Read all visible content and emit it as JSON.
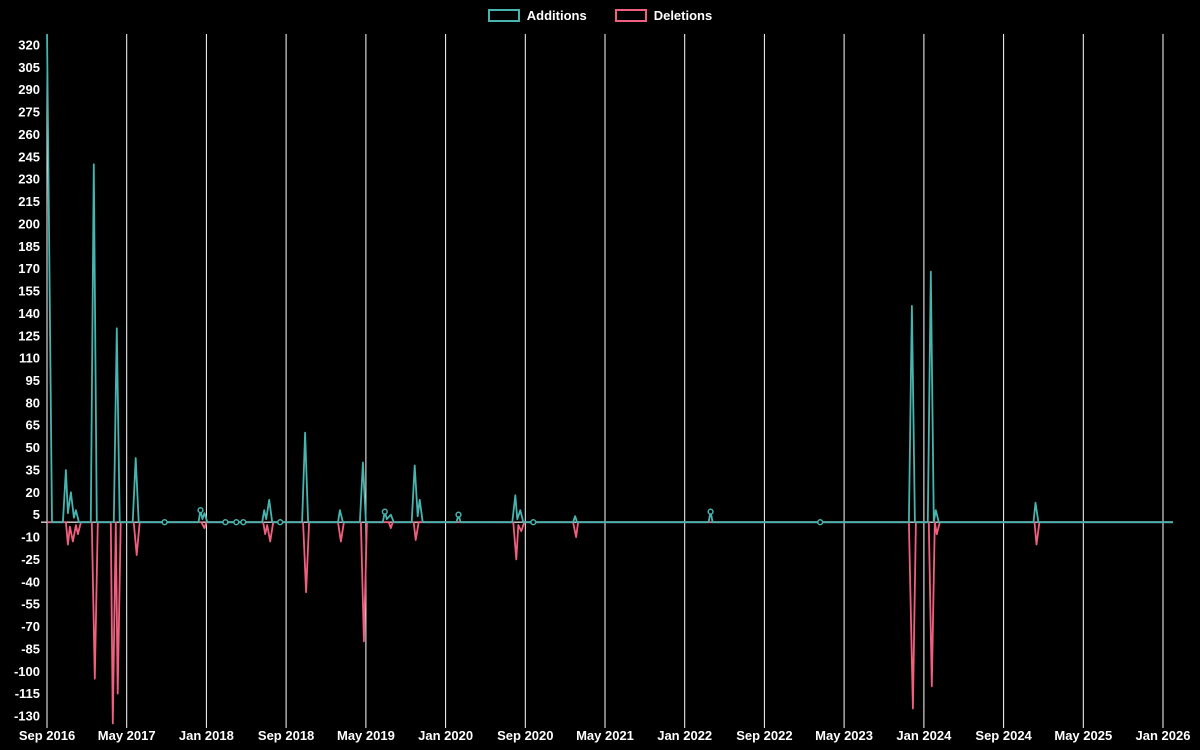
{
  "legend": {
    "position": "top-center"
  },
  "chart_data": {
    "type": "line",
    "title": "",
    "xlabel": "",
    "ylabel": "",
    "x_unit": "months since Sep 2016",
    "x_tick_interval_months": 8,
    "x_tick_labels": [
      "Sep 2016",
      "May 2017",
      "Jan 2018",
      "Sep 2018",
      "May 2019",
      "Jan 2020",
      "Sep 2020",
      "May 2021",
      "Jan 2022",
      "Sep 2022",
      "May 2023",
      "Jan 2024",
      "Sep 2024",
      "May 2025",
      "Jan 2026"
    ],
    "y_ticks": [
      320,
      305,
      290,
      275,
      260,
      245,
      230,
      215,
      200,
      185,
      170,
      155,
      140,
      125,
      110,
      95,
      80,
      65,
      50,
      35,
      20,
      5,
      -10,
      -25,
      -40,
      -55,
      -70,
      -85,
      -100,
      -115,
      -130
    ],
    "ylim": [
      -130,
      320
    ],
    "grid": "vertical-only",
    "legend_position": "top-center",
    "colors": {
      "background": "#000000",
      "grid": "#ffffff",
      "zero_line": "#d8d8d8",
      "text": "#ffffff",
      "additions": "#46b4af",
      "deletions": "#f0607e"
    },
    "series": [
      {
        "name": "Additions",
        "color": "#46b4af",
        "points": [
          [
            0,
            330
          ],
          [
            0.5,
            0
          ],
          [
            1.6,
            0
          ],
          [
            1.9,
            35
          ],
          [
            2.1,
            6
          ],
          [
            2.4,
            20
          ],
          [
            2.7,
            3
          ],
          [
            2.9,
            8
          ],
          [
            3.2,
            0
          ],
          [
            4.4,
            0
          ],
          [
            4.7,
            240
          ],
          [
            5.0,
            0
          ],
          [
            6.7,
            0
          ],
          [
            7.0,
            130
          ],
          [
            7.3,
            0
          ],
          [
            8.6,
            0
          ],
          [
            8.9,
            43
          ],
          [
            9.2,
            0
          ],
          [
            15.2,
            0
          ],
          [
            15.4,
            8
          ],
          [
            15.6,
            2
          ],
          [
            15.8,
            6
          ],
          [
            16.1,
            0
          ],
          [
            21.6,
            0
          ],
          [
            21.8,
            8
          ],
          [
            22.0,
            2
          ],
          [
            22.3,
            15
          ],
          [
            22.6,
            0
          ],
          [
            25.6,
            0
          ],
          [
            25.9,
            60
          ],
          [
            26.2,
            0
          ],
          [
            29.2,
            0
          ],
          [
            29.4,
            8
          ],
          [
            29.7,
            0
          ],
          [
            31.4,
            0
          ],
          [
            31.7,
            40
          ],
          [
            32.0,
            0
          ],
          [
            33.7,
            0
          ],
          [
            33.9,
            7
          ],
          [
            34.1,
            2
          ],
          [
            34.5,
            5
          ],
          [
            34.8,
            0
          ],
          [
            36.6,
            0
          ],
          [
            36.9,
            38
          ],
          [
            37.2,
            4
          ],
          [
            37.4,
            15
          ],
          [
            37.7,
            0
          ],
          [
            41.1,
            0
          ],
          [
            41.3,
            5
          ],
          [
            41.5,
            0
          ],
          [
            46.7,
            0
          ],
          [
            47.0,
            18
          ],
          [
            47.2,
            2
          ],
          [
            47.5,
            8
          ],
          [
            47.8,
            0
          ],
          [
            52.8,
            0
          ],
          [
            53.0,
            4
          ],
          [
            53.2,
            0
          ],
          [
            66.4,
            0
          ],
          [
            66.6,
            7
          ],
          [
            66.8,
            0
          ],
          [
            86.5,
            0
          ],
          [
            86.8,
            145
          ],
          [
            87.1,
            0
          ],
          [
            88.4,
            0
          ],
          [
            88.7,
            168
          ],
          [
            89.0,
            0
          ],
          [
            89.2,
            8
          ],
          [
            89.5,
            0
          ],
          [
            99.0,
            0
          ],
          [
            99.2,
            13
          ],
          [
            99.5,
            0
          ],
          [
            113,
            0
          ]
        ],
        "markers": [
          [
            11.8,
            0
          ],
          [
            15.4,
            8
          ],
          [
            17.9,
            0
          ],
          [
            19.0,
            0
          ],
          [
            19.7,
            0
          ],
          [
            23.4,
            0
          ],
          [
            33.9,
            7
          ],
          [
            41.3,
            5
          ],
          [
            48.8,
            0
          ],
          [
            66.6,
            7
          ],
          [
            77.6,
            0
          ]
        ]
      },
      {
        "name": "Deletions",
        "color": "#f0607e",
        "points": [
          [
            0,
            0
          ],
          [
            1.9,
            0
          ],
          [
            2.1,
            -15
          ],
          [
            2.3,
            -3
          ],
          [
            2.6,
            -13
          ],
          [
            2.9,
            -2
          ],
          [
            3.1,
            -8
          ],
          [
            3.4,
            0
          ],
          [
            4.5,
            0
          ],
          [
            4.8,
            -105
          ],
          [
            5.1,
            0
          ],
          [
            6.4,
            0
          ],
          [
            6.6,
            -135
          ],
          [
            6.9,
            0
          ],
          [
            7.1,
            -115
          ],
          [
            7.4,
            0
          ],
          [
            8.7,
            0
          ],
          [
            9.0,
            -22
          ],
          [
            9.3,
            0
          ],
          [
            15.5,
            0
          ],
          [
            15.8,
            -4
          ],
          [
            16.0,
            0
          ],
          [
            21.7,
            0
          ],
          [
            21.9,
            -8
          ],
          [
            22.1,
            -2
          ],
          [
            22.4,
            -13
          ],
          [
            22.7,
            0
          ],
          [
            25.7,
            0
          ],
          [
            26.0,
            -47
          ],
          [
            26.3,
            0
          ],
          [
            29.2,
            0
          ],
          [
            29.5,
            -13
          ],
          [
            29.8,
            0
          ],
          [
            31.5,
            0
          ],
          [
            31.8,
            -80
          ],
          [
            32.1,
            0
          ],
          [
            34.3,
            0
          ],
          [
            34.5,
            -4
          ],
          [
            34.7,
            0
          ],
          [
            36.8,
            0
          ],
          [
            37.0,
            -12
          ],
          [
            37.3,
            0
          ],
          [
            46.8,
            0
          ],
          [
            47.1,
            -25
          ],
          [
            47.3,
            -2
          ],
          [
            47.6,
            -6
          ],
          [
            47.9,
            0
          ],
          [
            52.8,
            0
          ],
          [
            53.1,
            -10
          ],
          [
            53.3,
            0
          ],
          [
            86.5,
            0
          ],
          [
            86.9,
            -125
          ],
          [
            87.2,
            0
          ],
          [
            88.5,
            0
          ],
          [
            88.8,
            -110
          ],
          [
            89.1,
            0
          ],
          [
            89.3,
            -8
          ],
          [
            89.6,
            0
          ],
          [
            99.1,
            0
          ],
          [
            99.3,
            -15
          ],
          [
            99.6,
            0
          ],
          [
            113,
            0
          ]
        ],
        "markers": []
      }
    ]
  }
}
